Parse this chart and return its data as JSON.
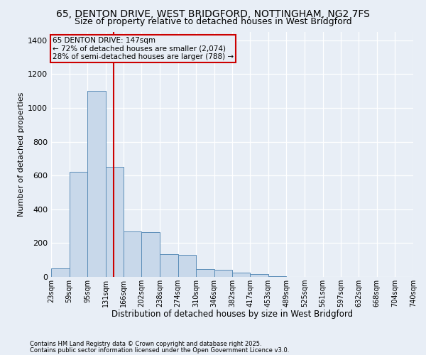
{
  "title_line1": "65, DENTON DRIVE, WEST BRIDGFORD, NOTTINGHAM, NG2 7FS",
  "title_line2": "Size of property relative to detached houses in West Bridgford",
  "xlabel": "Distribution of detached houses by size in West Bridgford",
  "ylabel": "Number of detached properties",
  "footer_line1": "Contains HM Land Registry data © Crown copyright and database right 2025.",
  "footer_line2": "Contains public sector information licensed under the Open Government Licence v3.0.",
  "annotation_title": "65 DENTON DRIVE: 147sqm",
  "annotation_line1": "← 72% of detached houses are smaller (2,074)",
  "annotation_line2": "28% of semi-detached houses are larger (788) →",
  "bar_left_edges": [
    23,
    59,
    95,
    131,
    167,
    202,
    238,
    274,
    310,
    346,
    382,
    417,
    453,
    489,
    525,
    561,
    597,
    632,
    668,
    704
  ],
  "bar_widths": [
    36,
    36,
    36,
    36,
    35,
    36,
    36,
    36,
    36,
    36,
    35,
    36,
    36,
    36,
    36,
    36,
    35,
    36,
    36,
    36
  ],
  "bar_heights": [
    50,
    620,
    1100,
    650,
    270,
    265,
    135,
    130,
    45,
    42,
    25,
    15,
    5,
    2,
    1,
    1,
    0,
    0,
    0,
    0
  ],
  "bar_color": "#c8d8ea",
  "bar_edge_color": "#5b8db8",
  "vline_x": 147,
  "vline_color": "#cc0000",
  "annotation_box_edgecolor": "#cc0000",
  "ylim": [
    0,
    1450
  ],
  "yticks": [
    0,
    200,
    400,
    600,
    800,
    1000,
    1200,
    1400
  ],
  "xlim_left": 23,
  "xlim_right": 740,
  "xtick_labels": [
    "23sqm",
    "59sqm",
    "95sqm",
    "131sqm",
    "166sqm",
    "202sqm",
    "238sqm",
    "274sqm",
    "310sqm",
    "346sqm",
    "382sqm",
    "417sqm",
    "453sqm",
    "489sqm",
    "525sqm",
    "561sqm",
    "597sqm",
    "632sqm",
    "668sqm",
    "704sqm",
    "740sqm"
  ],
  "xtick_positions": [
    23,
    59,
    95,
    131,
    167,
    202,
    238,
    274,
    310,
    346,
    382,
    417,
    453,
    489,
    525,
    561,
    597,
    632,
    668,
    704,
    740
  ],
  "background_color": "#e8eef6",
  "grid_color": "#ffffff",
  "title_fontsize": 10,
  "subtitle_fontsize": 9,
  "ylabel_fontsize": 8,
  "xlabel_fontsize": 8.5,
  "ytick_fontsize": 8,
  "xtick_fontsize": 7,
  "annotation_fontsize": 7.5,
  "footer_fontsize": 6
}
